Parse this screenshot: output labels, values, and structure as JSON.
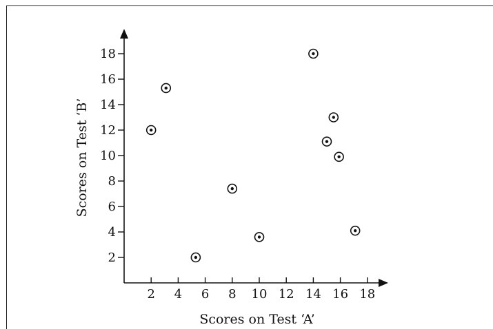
{
  "chart_data": {
    "type": "scatter",
    "title": "",
    "xlabel": "Scores on Test ‘A’",
    "ylabel": "Scores on Test ‘B’",
    "xlim": [
      0,
      18
    ],
    "ylim": [
      0,
      18
    ],
    "xticks": [
      2,
      4,
      6,
      8,
      10,
      12,
      14,
      16,
      18
    ],
    "yticks": [
      2,
      4,
      6,
      8,
      10,
      12,
      14,
      16,
      18
    ],
    "grid": false,
    "marker": "circled-dot",
    "points": [
      {
        "x": 2,
        "y": 12
      },
      {
        "x": 3.1,
        "y": 15.3
      },
      {
        "x": 5.3,
        "y": 2
      },
      {
        "x": 8,
        "y": 7.4
      },
      {
        "x": 10,
        "y": 3.6
      },
      {
        "x": 14,
        "y": 18
      },
      {
        "x": 15,
        "y": 11.1
      },
      {
        "x": 15.5,
        "y": 13
      },
      {
        "x": 15.9,
        "y": 9.9
      },
      {
        "x": 17.1,
        "y": 4.1
      }
    ]
  }
}
